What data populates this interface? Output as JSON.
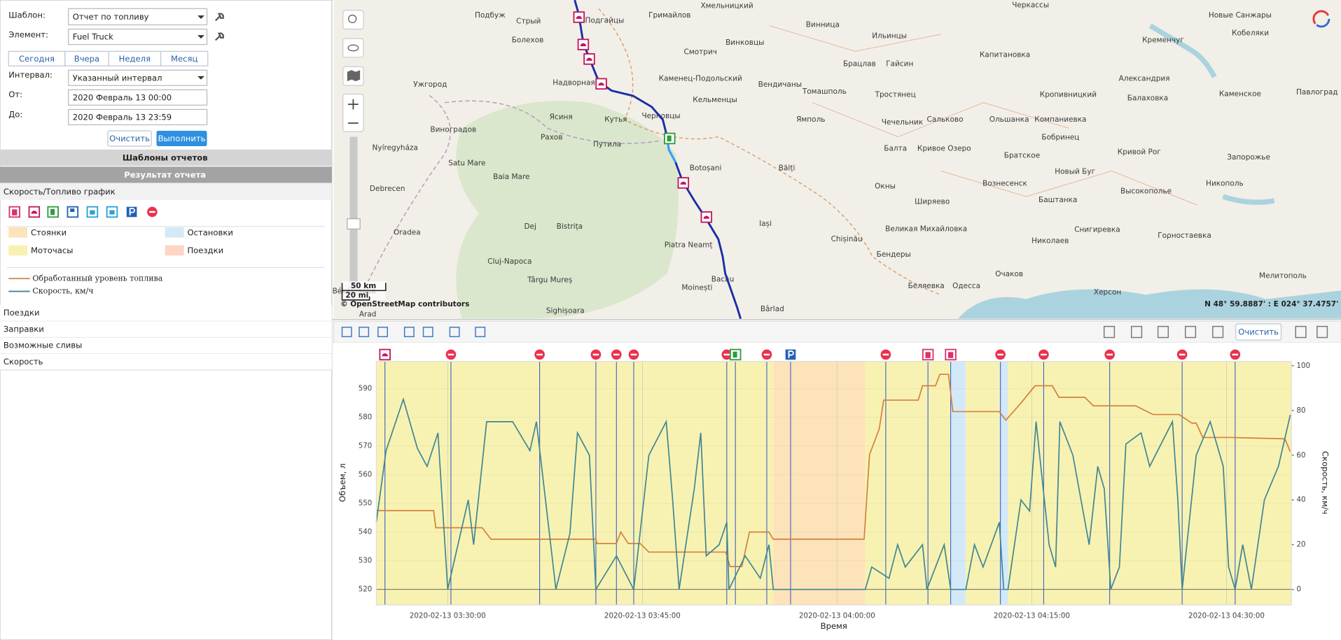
{
  "form": {
    "template_label": "Шаблон:",
    "template": "Отчет по топливу",
    "element_label": "Элемент:",
    "element": "Fuel Truck",
    "periods": [
      "Сегодня",
      "Вчера",
      "Неделя",
      "Месяц"
    ],
    "interval_label": "Интервал:",
    "interval": "Указанный интервал",
    "from_label": "От:",
    "from": "2020 Февраль 13 00:00",
    "to_label": "До:",
    "to": "2020 Февраль 13 23:59",
    "clear": "Очистить",
    "run": "Выполнить"
  },
  "panels": {
    "templates": "Шаблоны отчетов",
    "result": "Результат отчета",
    "chart_tab": "Скорость/Топливо график",
    "sections": [
      "Поездки",
      "Заправки",
      "Возможные сливы",
      "Скорость"
    ]
  },
  "map": {
    "labels": [
      "Черкассы",
      "Хмельницкий",
      "Подбуж",
      "Подгайцы",
      "Гримайлов",
      "Винница",
      "Ильинцы",
      "Новые Санжары",
      "Кременчуг",
      "Кобеляки",
      "Болехов",
      "Стрый",
      "Смотрич",
      "Винковцы",
      "Брацлав",
      "Гайсин",
      "Капитановка",
      "Ужгород",
      "Надворная",
      "Каменец-Подольский",
      "Вендичаны",
      "Томашполь",
      "Тростянец",
      "Кропивницкий",
      "Александрия",
      "Балаховка",
      "Каменское",
      "Павлоград",
      "Черновцы",
      "Виноградов",
      "Ясиня",
      "Кутья",
      "Кельменцы",
      "Ямполь",
      "Чечельник",
      "Сальково",
      "Ольшанка",
      "Компаниевка",
      "Рахов",
      "Путила",
      "Бобринец",
      "Nyíregyháza",
      "Satu Mare",
      "Botoșani",
      "Bălți",
      "Балта",
      "Кривое Озеро",
      "Братское",
      "Кривой Рог",
      "Запорожье",
      "Baia Mare",
      "Новый Буг",
      "Debrecen",
      "Окны",
      "Вознесенск",
      "Никополь",
      "Ширяево",
      "Баштанка",
      "Высокополье",
      "Oradea",
      "Dej",
      "Bistrița",
      "Iași",
      "Великая Михайловка",
      "Снигиревка",
      "Гορностаевка",
      "Piatra Neamț",
      "Chișinău",
      "Бендеры",
      "Николаев",
      "Cluj-Napoca",
      "Târgu Mureș",
      "Bacău",
      "Moinești",
      "Мелитополь",
      "Очаков",
      "Беляевка",
      "Одесса",
      "Херсон",
      "Sighișoara",
      "Bârlad",
      "Arad",
      "Békéscsaba"
    ],
    "scale_km": "50 km",
    "scale_mi": "20 mi",
    "attribution": "© OpenStreetMap contributors",
    "coords": "N 48° 59.8887' : E 024° 37.4757'"
  },
  "chart": {
    "type": "line",
    "clear": "Очистить",
    "y_label": "Объем, л",
    "y2_label": "Скорость, км/ч",
    "x_label": "Время",
    "xlim": [
      "2020-02-13 03:24:30",
      "2020-02-13 04:35:00"
    ],
    "xticks": [
      "2020-02-13 03:30:00",
      "2020-02-13 03:45:00",
      "2020-02-13 04:00:00",
      "2020-02-13 04:15:00",
      "2020-02-13 04:30:00"
    ],
    "ylim": [
      514.6,
      599.5
    ],
    "yticks": [
      520,
      530,
      540,
      550,
      560,
      570,
      580,
      590
    ],
    "y2lim": [
      -6.9,
      101.9
    ],
    "y2ticks": [
      0,
      20,
      40,
      60,
      80,
      100
    ],
    "grid": true,
    "areas": [
      {
        "name": "Стоянки",
        "color": "#fde3b9",
        "intervals": [
          [
            "2020-02-13 03:55:05",
            "2020-02-13 04:02:10"
          ]
        ]
      },
      {
        "name": "Остановки",
        "color": "#d4e9f8",
        "intervals": [
          [
            "2020-02-13 04:08:45",
            "2020-02-13 04:09:55"
          ],
          [
            "2020-02-13 04:12:30",
            "2020-02-13 04:13:10"
          ]
        ]
      },
      {
        "name": "Моточасы",
        "color": "#f8f2b2",
        "intervals": [
          [
            "2020-02-13 03:24:30",
            "2020-02-13 03:55:05"
          ],
          [
            "2020-02-13 04:02:10",
            "2020-02-13 04:08:45"
          ],
          [
            "2020-02-13 04:09:55",
            "2020-02-13 04:12:30"
          ],
          [
            "2020-02-13 04:13:10",
            "2020-02-13 04:35:00"
          ]
        ]
      },
      {
        "name": "Поездки",
        "color": "#fcd5c5"
      }
    ],
    "series": [
      {
        "name": "Обработанный уровень топлива",
        "color": "#d4803f",
        "axis": "y",
        "x": [
          "2020-02-13 03:24:30",
          "2020-02-13 03:28:55",
          "2020-02-13 03:29:05",
          "2020-02-13 03:32:40",
          "2020-02-13 03:33:20",
          "2020-02-13 03:41:25",
          "2020-02-13 03:41:30",
          "2020-02-13 03:43:00",
          "2020-02-13 03:43:20",
          "2020-02-13 03:43:55",
          "2020-02-13 03:44:50",
          "2020-02-13 03:45:30",
          "2020-02-13 03:51:25",
          "2020-02-13 03:51:45",
          "2020-02-13 03:52:40",
          "2020-02-13 03:53:15",
          "2020-02-13 03:54:45",
          "2020-02-13 03:55:05",
          "2020-02-13 04:02:05",
          "2020-02-13 04:02:30",
          "2020-02-13 04:03:15",
          "2020-02-13 04:03:35",
          "2020-02-13 04:06:15",
          "2020-02-13 04:06:35",
          "2020-02-13 04:07:35",
          "2020-02-13 04:07:55",
          "2020-02-13 04:08:35",
          "2020-02-13 04:08:55",
          "2020-02-13 04:12:30",
          "2020-02-13 04:13:00",
          "2020-02-13 04:14:10",
          "2020-02-13 04:15:15",
          "2020-02-13 04:16:35",
          "2020-02-13 04:17:05",
          "2020-02-13 04:19:05",
          "2020-02-13 04:19:45",
          "2020-02-13 04:23:00",
          "2020-02-13 04:24:20",
          "2020-02-13 04:26:20",
          "2020-02-13 04:27:20",
          "2020-02-13 04:27:40",
          "2020-02-13 04:28:10",
          "2020-02-13 04:30:15",
          "2020-02-13 04:34:30",
          "2020-02-13 04:34:55"
        ],
        "values": [
          547.5,
          547.5,
          541.5,
          541.5,
          537.5,
          537.5,
          536,
          536,
          540,
          536,
          536,
          533,
          533,
          528,
          528,
          540,
          540,
          537.5,
          537.5,
          567,
          576,
          586,
          586,
          591,
          591,
          595,
          595,
          582,
          582,
          579,
          585,
          591,
          591,
          587,
          587,
          584,
          584,
          581,
          581,
          578,
          578,
          573,
          573,
          572.5,
          568
        ]
      },
      {
        "name": "Скорость, км/ч",
        "color": "#3f8795",
        "axis": "y2",
        "x": [
          "2020-02-13 03:24:30",
          "2020-02-13 03:25:15",
          "2020-02-13 03:26:35",
          "2020-02-13 03:27:40",
          "2020-02-13 03:28:25",
          "2020-02-13 03:29:15",
          "2020-02-13 03:30:00",
          "2020-02-13 03:31:35",
          "2020-02-13 03:32:00",
          "2020-02-13 03:33:00",
          "2020-02-13 03:35:00",
          "2020-02-13 03:36:20",
          "2020-02-13 03:36:50",
          "2020-02-13 03:38:20",
          "2020-02-13 03:39:25",
          "2020-02-13 03:40:00",
          "2020-02-13 03:40:55",
          "2020-02-13 03:41:25",
          "2020-02-13 03:43:00",
          "2020-02-13 03:44:20",
          "2020-02-13 03:45:30",
          "2020-02-13 03:46:50",
          "2020-02-13 03:47:20",
          "2020-02-13 03:47:50",
          "2020-02-13 03:49:00",
          "2020-02-13 03:49:30",
          "2020-02-13 03:49:55",
          "2020-02-13 03:50:55",
          "2020-02-13 03:51:30",
          "2020-02-13 03:51:40",
          "2020-02-13 03:52:55",
          "2020-02-13 03:54:05",
          "2020-02-13 03:54:45",
          "2020-02-13 03:55:05",
          "2020-02-13 04:02:10",
          "2020-02-13 04:02:40",
          "2020-02-13 04:04:00",
          "2020-02-13 04:04:40",
          "2020-02-13 04:05:15",
          "2020-02-13 04:06:35",
          "2020-02-13 04:06:55",
          "2020-02-13 04:08:15",
          "2020-02-13 04:08:45",
          "2020-02-13 04:09:55",
          "2020-02-13 04:10:35",
          "2020-02-13 04:11:15",
          "2020-02-13 04:12:30",
          "2020-02-13 04:12:50",
          "2020-02-13 04:13:10",
          "2020-02-13 04:14:10",
          "2020-02-13 04:14:50",
          "2020-02-13 04:15:20",
          "2020-02-13 04:16:20",
          "2020-02-13 04:16:50",
          "2020-02-13 04:17:10",
          "2020-02-13 04:18:10",
          "2020-02-13 04:19:25",
          "2020-02-13 04:20:05",
          "2020-02-13 04:20:35",
          "2020-02-13 04:21:05",
          "2020-02-13 04:21:45",
          "2020-02-13 04:22:15",
          "2020-02-13 04:23:25",
          "2020-02-13 04:24:05",
          "2020-02-13 04:25:50",
          "2020-02-13 04:26:15",
          "2020-02-13 04:26:35",
          "2020-02-13 04:27:40",
          "2020-02-13 04:28:45",
          "2020-02-13 04:29:45",
          "2020-02-13 04:30:10",
          "2020-02-13 04:30:40",
          "2020-02-13 04:31:15",
          "2020-02-13 04:31:55",
          "2020-02-13 04:32:55",
          "2020-02-13 04:34:00",
          "2020-02-13 04:34:55"
        ],
        "values": [
          30,
          62,
          85,
          63,
          55,
          70,
          0,
          40,
          20,
          75,
          75,
          62,
          75,
          0,
          25,
          70,
          60,
          0,
          15,
          0,
          60,
          75,
          40,
          0,
          45,
          70,
          15,
          20,
          30,
          0,
          15,
          5,
          20,
          0,
          0,
          10,
          5,
          20,
          10,
          20,
          0,
          20,
          0,
          0,
          20,
          10,
          30,
          0,
          0,
          40,
          35,
          75,
          20,
          10,
          75,
          60,
          20,
          55,
          45,
          0,
          10,
          65,
          70,
          55,
          75,
          40,
          0,
          60,
          75,
          55,
          10,
          0,
          20,
          0,
          40,
          55,
          78
        ]
      }
    ],
    "events": [
      {
        "time": "2020-02-13 03:25:10",
        "icon": "fuel"
      },
      {
        "time": "2020-02-13 03:30:15",
        "icon": "stop"
      },
      {
        "time": "2020-02-13 03:37:05",
        "icon": "stop"
      },
      {
        "time": "2020-02-13 03:41:25",
        "icon": "stop"
      },
      {
        "time": "2020-02-13 03:43:00",
        "icon": "stop"
      },
      {
        "time": "2020-02-13 03:44:20",
        "icon": "stop"
      },
      {
        "time": "2020-02-13 03:51:30",
        "icon": "stop"
      },
      {
        "time": "2020-02-13 03:52:10",
        "icon": "refuel"
      },
      {
        "time": "2020-02-13 03:54:35",
        "icon": "stop"
      },
      {
        "time": "2020-02-13 03:56:25",
        "icon": "parking"
      },
      {
        "time": "2020-02-13 04:03:45",
        "icon": "stop"
      },
      {
        "time": "2020-02-13 04:07:00",
        "icon": "drain"
      },
      {
        "time": "2020-02-13 04:08:45",
        "icon": "drain"
      },
      {
        "time": "2020-02-13 04:12:35",
        "icon": "stop"
      },
      {
        "time": "2020-02-13 04:15:55",
        "icon": "stop"
      },
      {
        "time": "2020-02-13 04:21:00",
        "icon": "stop"
      },
      {
        "time": "2020-02-13 04:26:35",
        "icon": "stop"
      },
      {
        "time": "2020-02-13 04:30:40",
        "icon": "stop"
      }
    ]
  }
}
